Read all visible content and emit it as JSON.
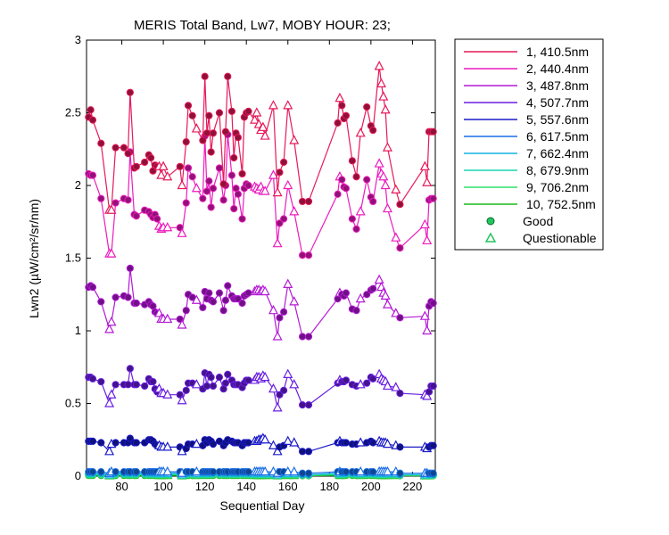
{
  "chart_data": {
    "type": "line",
    "title": "MERIS Total Band, Lw7, MOBY HOUR: 23;",
    "xlabel": "Sequential Day",
    "ylabel": "Lwn2 (µW/cm²/sr/nm)",
    "xlim": [
      63,
      231
    ],
    "ylim": [
      0,
      3
    ],
    "xticks": [
      80,
      100,
      120,
      140,
      160,
      180,
      200,
      220
    ],
    "yticks": [
      0,
      0.5,
      1,
      1.5,
      2,
      2.5,
      3
    ],
    "xtick_labels": [
      "80",
      "100",
      "120",
      "140",
      "160",
      "180",
      "200",
      "220"
    ],
    "ytick_labels": [
      "0",
      "0.5",
      "1",
      "1.5",
      "2",
      "2.5",
      "3"
    ],
    "grid": false,
    "legend_position": "outside-right",
    "marker_legend": [
      {
        "label": "Good",
        "marker": "circle",
        "color": "#22c55e"
      },
      {
        "label": "Questionable",
        "marker": "triangle",
        "color": "#22c55e"
      }
    ],
    "x": [
      64,
      65,
      66,
      70,
      74,
      75,
      77,
      81,
      83,
      84,
      86,
      87,
      91,
      93,
      94,
      95,
      96,
      97,
      98,
      99,
      100,
      102,
      108,
      109,
      111,
      112,
      114,
      116,
      119,
      120,
      121,
      122,
      123,
      124,
      127,
      129,
      130,
      131,
      133,
      134,
      135,
      136,
      138,
      139,
      140,
      141,
      144,
      145,
      146,
      147,
      148,
      149,
      153,
      155,
      156,
      158,
      160,
      163,
      167,
      170,
      184,
      185,
      186,
      187,
      188,
      191,
      193,
      195,
      198,
      200,
      201,
      204,
      205,
      206,
      207,
      208,
      212,
      214,
      226,
      227,
      228,
      229,
      230
    ],
    "quality": [
      "G",
      "G",
      "G",
      "G",
      "Q",
      "Q",
      "G",
      "G",
      "G",
      "G",
      "G",
      "G",
      "G",
      "G",
      "G",
      "G",
      "G",
      "G",
      "Q",
      "Q",
      "Q",
      "Q",
      "G",
      "Q",
      "G",
      "G",
      "G",
      "Q",
      "G",
      "G",
      "G",
      "G",
      "G",
      "G",
      "G",
      "G",
      "G",
      "G",
      "G",
      "G",
      "G",
      "G",
      "G",
      "G",
      "G",
      "G",
      "Q",
      "Q",
      "Q",
      "Q",
      "Q",
      "Q",
      "Q",
      "Q",
      "G",
      "G",
      "Q",
      "Q",
      "G",
      "G",
      "G",
      "Q",
      "G",
      "G",
      "G",
      "G",
      "G",
      "Q",
      "G",
      "G",
      "G",
      "Q",
      "Q",
      "Q",
      "Q",
      "Q",
      "Q",
      "G",
      "Q",
      "Q",
      "G",
      "G",
      "G"
    ],
    "series": [
      {
        "name": "1, 410.5nm",
        "color": "#e6195a",
        "values": [
          2.47,
          2.52,
          2.45,
          2.29,
          1.83,
          1.83,
          2.26,
          2.26,
          2.22,
          2.64,
          2.12,
          2.13,
          2.16,
          2.21,
          2.19,
          2.1,
          2.14,
          2.13,
          2.13,
          2.07,
          2.13,
          2.06,
          2.13,
          2.0,
          2.3,
          2.55,
          2.48,
          2.39,
          2.31,
          2.75,
          2.36,
          2.48,
          2.23,
          2.36,
          2.5,
          2.01,
          2.37,
          2.75,
          2.51,
          2.19,
          2.36,
          2.33,
          2.08,
          2.47,
          2.5,
          2.51,
          2.45,
          2.5,
          2.42,
          2.38,
          2.4,
          2.34,
          2.55,
          1.95,
          2.09,
          2.16,
          2.55,
          2.31,
          1.89,
          1.89,
          2.43,
          2.6,
          2.55,
          2.46,
          2.48,
          2.17,
          2.06,
          2.36,
          2.54,
          2.41,
          2.38,
          2.82,
          2.7,
          2.61,
          2.52,
          2.26,
          1.97,
          1.87,
          2.13,
          2.02,
          2.37,
          2.37,
          2.37
        ]
      },
      {
        "name": "2, 440.4nm",
        "color": "#ec1cbe",
        "values": [
          2.08,
          2.07,
          2.07,
          1.91,
          1.53,
          1.53,
          1.88,
          1.91,
          1.9,
          2.23,
          1.8,
          1.79,
          1.83,
          1.82,
          1.8,
          1.78,
          1.8,
          1.77,
          1.72,
          1.7,
          1.71,
          1.71,
          1.71,
          1.67,
          1.88,
          2.12,
          2.06,
          1.98,
          1.91,
          2.34,
          1.96,
          2.03,
          1.85,
          1.98,
          2.12,
          1.9,
          2.0,
          2.35,
          2.07,
          1.84,
          1.98,
          1.94,
          1.77,
          1.98,
          2.01,
          2.0,
          1.99,
          1.98,
          1.97,
          1.99,
          1.96,
          1.96,
          2.07,
          1.6,
          1.74,
          1.77,
          2.0,
          1.82,
          1.52,
          1.52,
          1.94,
          2.06,
          2.04,
          1.99,
          1.98,
          1.77,
          1.7,
          1.82,
          2.04,
          1.92,
          1.89,
          2.15,
          2.08,
          2.06,
          2.0,
          1.84,
          1.64,
          1.57,
          1.73,
          1.62,
          1.9,
          1.91,
          1.91
        ]
      },
      {
        "name": "3, 487.8nm",
        "color": "#b41ad6",
        "values": [
          1.3,
          1.31,
          1.3,
          1.2,
          1.01,
          1.06,
          1.23,
          1.24,
          1.23,
          1.43,
          1.19,
          1.19,
          1.18,
          1.2,
          1.18,
          1.17,
          1.13,
          1.12,
          1.12,
          1.08,
          1.08,
          1.08,
          1.08,
          1.04,
          1.14,
          1.25,
          1.23,
          1.21,
          1.16,
          1.27,
          1.22,
          1.26,
          1.21,
          1.2,
          1.26,
          1.14,
          1.21,
          1.31,
          1.24,
          1.22,
          1.22,
          1.22,
          1.19,
          1.24,
          1.25,
          1.26,
          1.27,
          1.28,
          1.28,
          1.27,
          1.28,
          1.27,
          1.14,
          0.96,
          1.09,
          1.13,
          1.32,
          1.2,
          0.96,
          0.96,
          1.22,
          1.26,
          1.25,
          1.24,
          1.26,
          1.15,
          1.14,
          1.22,
          1.25,
          1.28,
          1.29,
          1.35,
          1.3,
          1.26,
          1.24,
          1.18,
          1.12,
          1.09,
          1.1,
          1.0,
          1.17,
          1.2,
          1.19
        ]
      },
      {
        "name": "4, 507.7nm",
        "color": "#6a1fe0",
        "values": [
          0.68,
          0.68,
          0.67,
          0.65,
          0.5,
          0.56,
          0.63,
          0.63,
          0.63,
          0.74,
          0.63,
          0.63,
          0.62,
          0.67,
          0.65,
          0.65,
          0.6,
          0.58,
          0.6,
          0.57,
          0.57,
          0.56,
          0.56,
          0.52,
          0.59,
          0.64,
          0.64,
          0.63,
          0.6,
          0.71,
          0.62,
          0.7,
          0.68,
          0.62,
          0.68,
          0.6,
          0.64,
          0.7,
          0.66,
          0.63,
          0.63,
          0.63,
          0.61,
          0.64,
          0.66,
          0.66,
          0.66,
          0.68,
          0.68,
          0.67,
          0.69,
          0.68,
          0.6,
          0.47,
          0.56,
          0.59,
          0.7,
          0.63,
          0.49,
          0.49,
          0.64,
          0.66,
          0.65,
          0.65,
          0.66,
          0.63,
          0.62,
          0.63,
          0.64,
          0.68,
          0.67,
          0.7,
          0.67,
          0.66,
          0.65,
          0.62,
          0.61,
          0.57,
          0.56,
          0.55,
          0.58,
          0.62,
          0.62
        ]
      },
      {
        "name": "5, 557.6nm",
        "color": "#1a1ac8",
        "values": [
          0.24,
          0.24,
          0.24,
          0.23,
          0.17,
          0.22,
          0.23,
          0.23,
          0.23,
          0.26,
          0.23,
          0.23,
          0.23,
          0.25,
          0.25,
          0.24,
          0.22,
          0.21,
          0.21,
          0.2,
          0.2,
          0.2,
          0.2,
          0.17,
          0.19,
          0.22,
          0.22,
          0.22,
          0.21,
          0.25,
          0.23,
          0.25,
          0.24,
          0.22,
          0.24,
          0.21,
          0.23,
          0.25,
          0.24,
          0.23,
          0.23,
          0.23,
          0.21,
          0.23,
          0.23,
          0.23,
          0.24,
          0.24,
          0.25,
          0.25,
          0.26,
          0.25,
          0.21,
          0.17,
          0.2,
          0.21,
          0.24,
          0.23,
          0.17,
          0.17,
          0.23,
          0.24,
          0.23,
          0.23,
          0.23,
          0.22,
          0.22,
          0.23,
          0.23,
          0.24,
          0.23,
          0.24,
          0.23,
          0.23,
          0.23,
          0.22,
          0.21,
          0.2,
          0.2,
          0.19,
          0.2,
          0.21,
          0.21
        ]
      },
      {
        "name": "6, 617.5nm",
        "color": "#1a6fe6",
        "values": [
          0.03,
          0.03,
          0.03,
          0.03,
          0.02,
          0.03,
          0.03,
          0.03,
          0.03,
          0.03,
          0.03,
          0.03,
          0.03,
          0.03,
          0.03,
          0.03,
          0.03,
          0.03,
          0.03,
          0.03,
          0.03,
          0.03,
          0.03,
          0.02,
          0.03,
          0.03,
          0.03,
          0.03,
          0.03,
          0.03,
          0.03,
          0.03,
          0.03,
          0.03,
          0.03,
          0.03,
          0.03,
          0.03,
          0.03,
          0.03,
          0.03,
          0.03,
          0.03,
          0.03,
          0.03,
          0.03,
          0.03,
          0.03,
          0.03,
          0.03,
          0.03,
          0.03,
          0.03,
          0.02,
          0.03,
          0.03,
          0.03,
          0.03,
          0.02,
          0.02,
          0.03,
          0.03,
          0.03,
          0.03,
          0.03,
          0.03,
          0.03,
          0.03,
          0.03,
          0.03,
          0.03,
          0.03,
          0.03,
          0.03,
          0.03,
          0.03,
          0.03,
          0.02,
          0.02,
          0.02,
          0.02,
          0.02,
          0.02
        ]
      },
      {
        "name": "7, 662.4nm",
        "color": "#15b4e0",
        "values": [
          0.02,
          0.02,
          0.02,
          0.02,
          0.01,
          0.02,
          0.02,
          0.02,
          0.02,
          0.02,
          0.02,
          0.02,
          0.02,
          0.02,
          0.02,
          0.02,
          0.02,
          0.02,
          0.02,
          0.02,
          0.02,
          0.02,
          0.02,
          0.01,
          0.02,
          0.02,
          0.02,
          0.02,
          0.02,
          0.02,
          0.02,
          0.02,
          0.02,
          0.02,
          0.02,
          0.02,
          0.02,
          0.02,
          0.02,
          0.02,
          0.02,
          0.02,
          0.02,
          0.02,
          0.02,
          0.02,
          0.02,
          0.02,
          0.02,
          0.02,
          0.02,
          0.02,
          0.02,
          0.01,
          0.02,
          0.02,
          0.02,
          0.02,
          0.01,
          0.01,
          0.02,
          0.02,
          0.02,
          0.02,
          0.02,
          0.02,
          0.02,
          0.02,
          0.02,
          0.02,
          0.02,
          0.02,
          0.02,
          0.02,
          0.02,
          0.02,
          0.02,
          0.01,
          0.01,
          0.01,
          0.01,
          0.01,
          0.01
        ]
      },
      {
        "name": "8, 679.9nm",
        "color": "#18d6b0",
        "values": [
          0.015,
          0.015,
          0.015,
          0.015,
          0.01,
          0.015,
          0.015,
          0.015,
          0.015,
          0.015,
          0.015,
          0.015,
          0.015,
          0.015,
          0.015,
          0.015,
          0.015,
          0.015,
          0.015,
          0.015,
          0.015,
          0.015,
          0.015,
          0.01,
          0.015,
          0.015,
          0.015,
          0.015,
          0.015,
          0.015,
          0.015,
          0.015,
          0.015,
          0.015,
          0.015,
          0.015,
          0.015,
          0.015,
          0.015,
          0.015,
          0.015,
          0.015,
          0.015,
          0.015,
          0.015,
          0.015,
          0.015,
          0.015,
          0.015,
          0.015,
          0.015,
          0.015,
          0.015,
          0.01,
          0.015,
          0.015,
          0.015,
          0.015,
          0.01,
          0.01,
          0.015,
          0.015,
          0.015,
          0.015,
          0.015,
          0.015,
          0.015,
          0.015,
          0.015,
          0.015,
          0.015,
          0.015,
          0.015,
          0.015,
          0.015,
          0.015,
          0.015,
          0.01,
          0.01,
          0.01,
          0.01,
          0.01,
          0.01
        ]
      },
      {
        "name": "9, 706.2nm",
        "color": "#2ee06a",
        "values": [
          0.01,
          0.01,
          0.01,
          0.01,
          0.005,
          0.01,
          0.01,
          0.01,
          0.01,
          0.01,
          0.01,
          0.01,
          0.01,
          0.01,
          0.01,
          0.01,
          0.01,
          0.01,
          0.01,
          0.01,
          0.01,
          0.01,
          0.01,
          0.005,
          0.01,
          0.01,
          0.01,
          0.01,
          0.01,
          0.01,
          0.01,
          0.01,
          0.01,
          0.01,
          0.01,
          0.01,
          0.01,
          0.01,
          0.01,
          0.01,
          0.01,
          0.01,
          0.01,
          0.01,
          0.01,
          0.01,
          0.01,
          0.01,
          0.01,
          0.01,
          0.01,
          0.01,
          0.01,
          0.005,
          0.01,
          0.01,
          0.01,
          0.01,
          0.005,
          0.005,
          0.01,
          0.01,
          0.01,
          0.01,
          0.01,
          0.01,
          0.01,
          0.01,
          0.01,
          0.01,
          0.01,
          0.01,
          0.01,
          0.01,
          0.01,
          0.01,
          0.01,
          0.005,
          0.005,
          0.005,
          0.005,
          0.005,
          0.005
        ]
      },
      {
        "name": "10, 752.5nm",
        "color": "#1bb81b",
        "values": [
          0.005,
          0.005,
          0.005,
          0.005,
          0.003,
          0.005,
          0.005,
          0.005,
          0.005,
          0.005,
          0.005,
          0.005,
          0.005,
          0.005,
          0.005,
          0.005,
          0.005,
          0.005,
          0.005,
          0.005,
          0.005,
          0.005,
          0.005,
          0.003,
          0.005,
          0.005,
          0.005,
          0.005,
          0.005,
          0.005,
          0.005,
          0.005,
          0.005,
          0.005,
          0.005,
          0.005,
          0.005,
          0.005,
          0.005,
          0.005,
          0.005,
          0.005,
          0.005,
          0.005,
          0.005,
          0.005,
          0.005,
          0.005,
          0.005,
          0.005,
          0.005,
          0.005,
          0.005,
          0.003,
          0.005,
          0.005,
          0.005,
          0.005,
          0.003,
          0.003,
          0.005,
          0.005,
          0.005,
          0.005,
          0.005,
          0.005,
          0.005,
          0.005,
          0.005,
          0.005,
          0.005,
          0.005,
          0.005,
          0.005,
          0.005,
          0.005,
          0.005,
          0.003,
          0.003,
          0.003,
          0.003,
          0.003,
          0.003
        ]
      }
    ]
  }
}
